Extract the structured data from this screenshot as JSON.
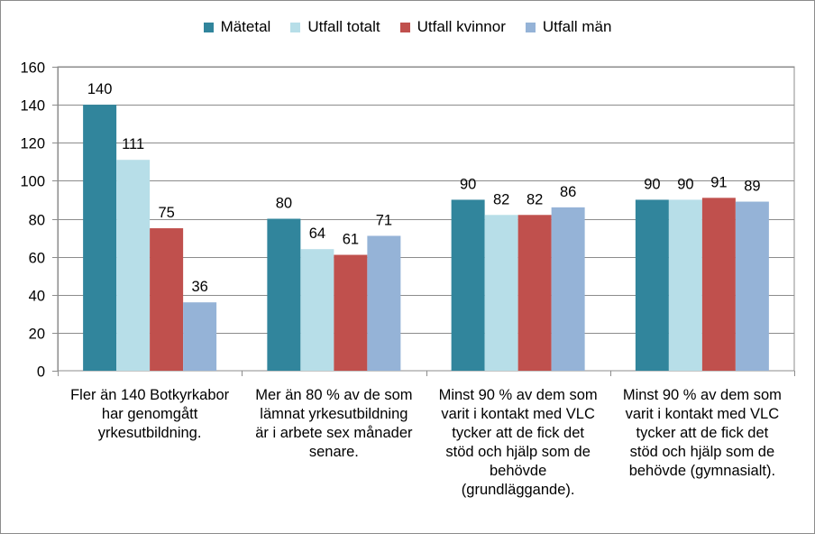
{
  "chart_data": {
    "type": "bar",
    "title": "",
    "xlabel": "",
    "ylabel": "",
    "ylim": [
      0,
      160
    ],
    "yticks": [
      0,
      20,
      40,
      60,
      80,
      100,
      120,
      140,
      160
    ],
    "grid": true,
    "legend_position": "top",
    "categories": [
      [
        "Fler än 140 Botkyrkabor",
        "har genomgått",
        "yrkesutbildning."
      ],
      [
        "Mer än 80 % av de som",
        "lämnat yrkesutbildning",
        "är i arbete sex månader",
        "senare."
      ],
      [
        "Minst 90 % av dem som",
        "varit i kontakt med VLC",
        "tycker att de fick det",
        "stöd och hjälp som de",
        "behövde",
        "(grundläggande)."
      ],
      [
        "Minst 90 % av dem som",
        "varit i kontakt med VLC",
        "tycker att de fick det",
        "stöd och hjälp som de",
        "behövde (gymnasialt)."
      ]
    ],
    "series": [
      {
        "name": "Mätetal",
        "color": "#31859c",
        "values": [
          140,
          80,
          90,
          90
        ]
      },
      {
        "name": "Utfall totalt",
        "color": "#b7dee8",
        "values": [
          111,
          64,
          82,
          90
        ]
      },
      {
        "name": "Utfall kvinnor",
        "color": "#c0504d",
        "values": [
          75,
          61,
          82,
          91
        ]
      },
      {
        "name": "Utfall män",
        "color": "#95b3d7",
        "values": [
          36,
          71,
          86,
          89
        ]
      }
    ]
  }
}
